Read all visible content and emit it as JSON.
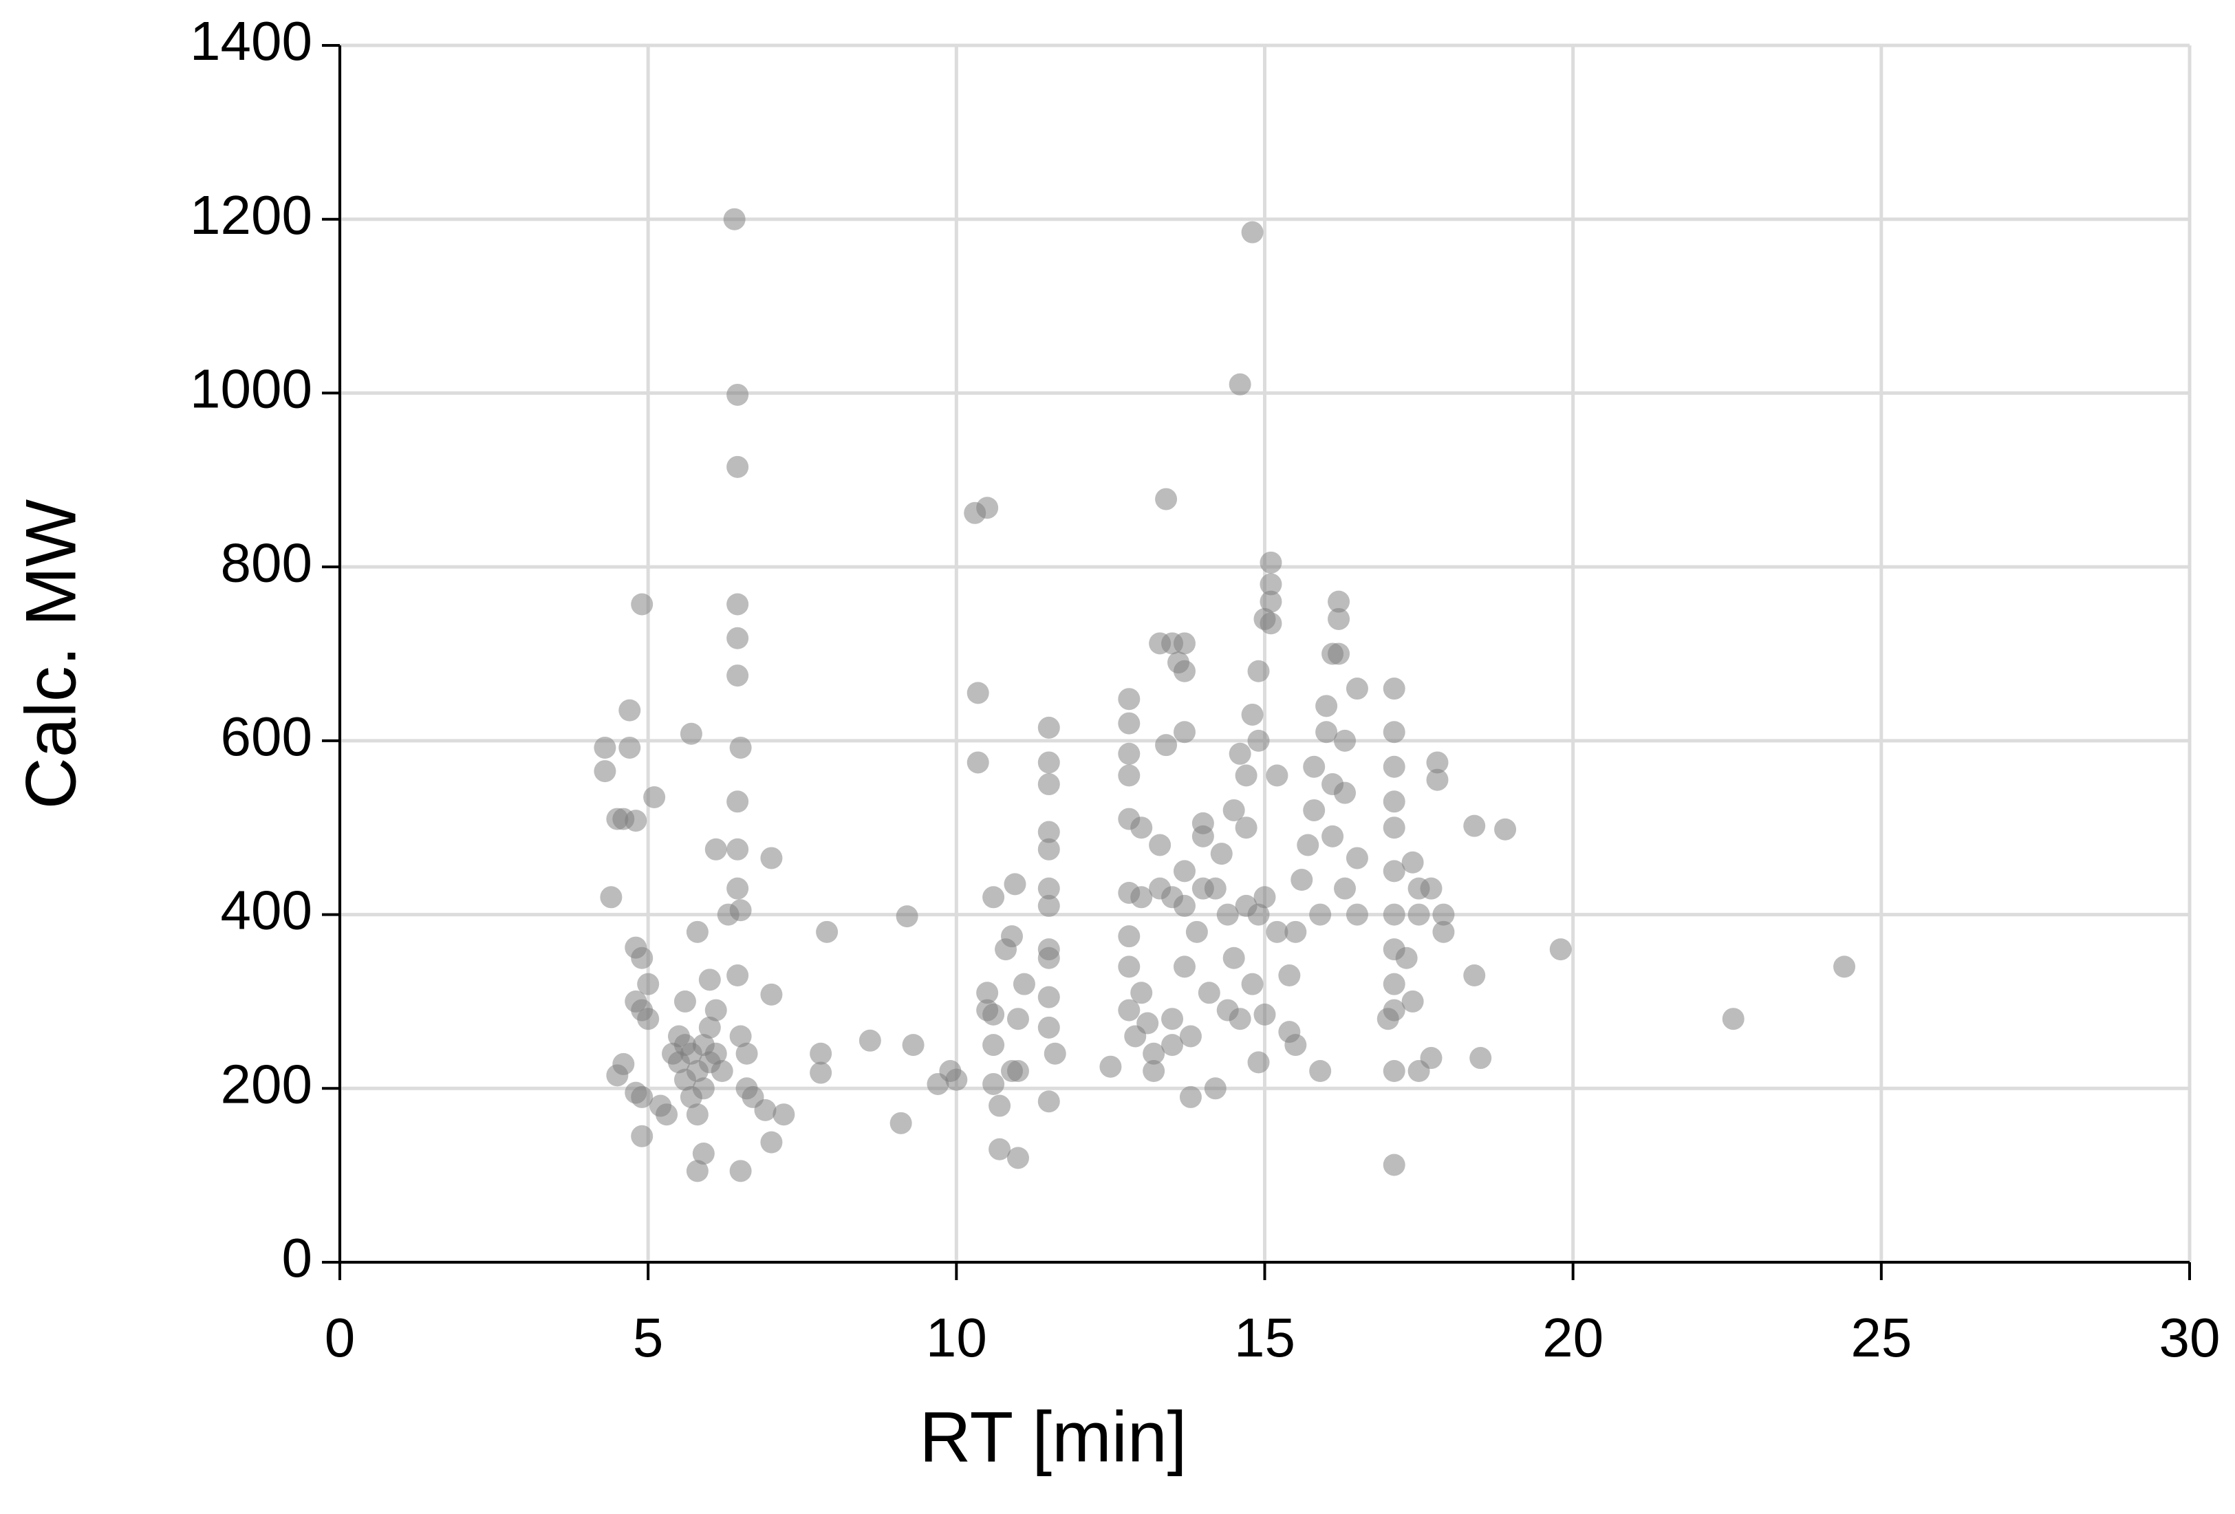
{
  "chart_data": {
    "type": "scatter",
    "xlabel": "RT [min]",
    "ylabel": "Calc. MW",
    "xlim": [
      0,
      30
    ],
    "ylim": [
      0,
      1400
    ],
    "xticks": [
      0,
      5,
      10,
      15,
      20,
      25,
      30
    ],
    "yticks": [
      0,
      200,
      400,
      600,
      800,
      1000,
      1200,
      1400
    ],
    "grid": true,
    "color": "#7a7a7a",
    "x": [
      4.3,
      4.3,
      4.4,
      4.5,
      4.6,
      4.7,
      4.7,
      4.8,
      4.9,
      4.8,
      4.9,
      4.8,
      4.9,
      5,
      4.6,
      4.5,
      4.8,
      4.9,
      4.9,
      5.1,
      5.0,
      5.2,
      5.3,
      5.4,
      5.5,
      5.5,
      5.6,
      5.6,
      5.7,
      5.7,
      5.8,
      5.8,
      5.9,
      5.9,
      6.0,
      6.0,
      6.1,
      6.1,
      6.2,
      5.6,
      5.7,
      5.8,
      5.9,
      5.8,
      6.0,
      6.1,
      6.3,
      6.4,
      6.45,
      6.45,
      6.45,
      6.45,
      6.45,
      6.5,
      6.45,
      6.45,
      6.45,
      6.5,
      6.45,
      6.5,
      6.5,
      6.6,
      6.6,
      6.7,
      6.9,
      7.0,
      7.0,
      7.0,
      7.2,
      7.9,
      7.8,
      7.8,
      8.6,
      9.1,
      9.2,
      9.3,
      9.7,
      9.9,
      10.0,
      10.3,
      10.5,
      10.35,
      10.35,
      10.5,
      10.5,
      10.6,
      10.6,
      10.6,
      10.6,
      10.7,
      10.7,
      10.8,
      10.9,
      10.95,
      11.0,
      11.0,
      10.9,
      11.0,
      11.1,
      11.5,
      11.5,
      11.5,
      11.5,
      11.5,
      11.5,
      11.5,
      11.5,
      11.5,
      11.5,
      11.5,
      11.5,
      11.6,
      12.5,
      12.8,
      12.8,
      12.8,
      12.8,
      12.8,
      12.8,
      12.8,
      12.8,
      12.8,
      12.9,
      13.0,
      13.0,
      13.0,
      13.1,
      13.2,
      13.2,
      13.3,
      13.3,
      13.4,
      13.3,
      13.4,
      13.5,
      13.5,
      13.5,
      13.5,
      13.6,
      13.7,
      13.7,
      13.7,
      13.7,
      13.7,
      13.7,
      13.8,
      13.8,
      13.9,
      14.0,
      14.0,
      14.0,
      14.1,
      14.2,
      14.2,
      14.3,
      14.4,
      14.4,
      14.5,
      14.5,
      14.6,
      14.6,
      14.6,
      14.7,
      14.7,
      14.7,
      14.8,
      14.8,
      14.8,
      14.9,
      14.9,
      14.9,
      14.9,
      15.0,
      15.0,
      15.0,
      15.1,
      15.1,
      15.1,
      15.1,
      15.2,
      15.2,
      15.4,
      15.4,
      15.5,
      15.5,
      15.6,
      15.7,
      15.8,
      15.8,
      15.9,
      15.9,
      16.0,
      16.0,
      16.1,
      16.1,
      16.1,
      16.2,
      16.2,
      16.2,
      16.3,
      16.3,
      16.3,
      16.5,
      16.5,
      16.5,
      17.0,
      17.1,
      17.1,
      17.1,
      17.1,
      17.1,
      17.1,
      17.1,
      17.1,
      17.1,
      17.1,
      17.1,
      17.1,
      17.3,
      17.4,
      17.4,
      17.5,
      17.5,
      17.5,
      17.7,
      17.7,
      17.8,
      17.8,
      17.9,
      17.9,
      18.4,
      18.4,
      18.5,
      18.9,
      19.8,
      22.6,
      24.4
    ],
    "values": [
      592,
      565,
      420,
      510,
      510,
      635,
      592,
      508,
      757,
      362,
      350,
      300,
      290,
      280,
      228,
      215,
      195,
      190,
      145,
      535,
      320,
      180,
      170,
      240,
      260,
      230,
      250,
      210,
      240,
      190,
      170,
      220,
      250,
      200,
      270,
      230,
      290,
      240,
      220,
      300,
      608,
      105,
      125,
      380,
      325,
      475,
      400,
      1200,
      998,
      915,
      757,
      718,
      675,
      592,
      530,
      475,
      430,
      405,
      330,
      260,
      105,
      240,
      200,
      190,
      175,
      465,
      308,
      138,
      170,
      380,
      240,
      218,
      255,
      160,
      398,
      250,
      205,
      220,
      210,
      862,
      868,
      655,
      575,
      310,
      290,
      420,
      285,
      250,
      205,
      180,
      130,
      360,
      375,
      435,
      280,
      220,
      220,
      120,
      320,
      615,
      575,
      550,
      495,
      475,
      430,
      410,
      360,
      350,
      305,
      270,
      185,
      240,
      225,
      648,
      620,
      585,
      560,
      510,
      425,
      375,
      340,
      290,
      260,
      500,
      420,
      310,
      275,
      240,
      220,
      480,
      430,
      878,
      712,
      595,
      712,
      420,
      280,
      250,
      690,
      680,
      610,
      712,
      450,
      410,
      340,
      190,
      260,
      380,
      430,
      505,
      490,
      310,
      200,
      430,
      470,
      290,
      400,
      520,
      350,
      1010,
      585,
      280,
      560,
      500,
      410,
      1185,
      630,
      320,
      680,
      600,
      400,
      230,
      740,
      420,
      285,
      805,
      780,
      760,
      735,
      560,
      380,
      330,
      265,
      250,
      380,
      440,
      480,
      520,
      570,
      220,
      400,
      640,
      610,
      700,
      550,
      490,
      760,
      740,
      700,
      600,
      540,
      430,
      660,
      465,
      400,
      280,
      660,
      610,
      570,
      530,
      500,
      450,
      400,
      360,
      320,
      290,
      220,
      112,
      350,
      460,
      300,
      430,
      220,
      400,
      430,
      235,
      575,
      555,
      400,
      380,
      502,
      330,
      235,
      498,
      360,
      280,
      340
    ]
  }
}
